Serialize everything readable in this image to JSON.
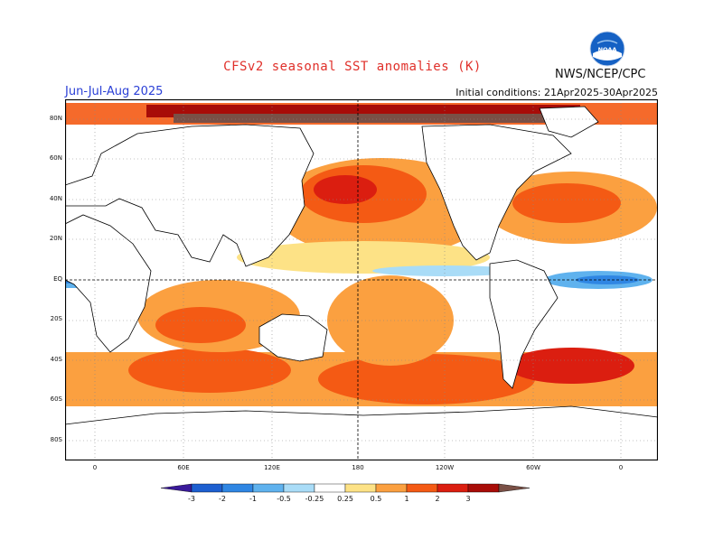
{
  "header": {
    "title": "CFSv2 seasonal SST anomalies (K)",
    "org": "NWS/NCEP/CPC",
    "season": "Jun-Jul-Aug 2025",
    "init": "Initial conditions: 21Apr2025-30Apr2025",
    "logo_text": "NOAA"
  },
  "map": {
    "lat_ticks": [
      "80N",
      "60N",
      "40N",
      "20N",
      "EQ",
      "20S",
      "40S",
      "60S",
      "80S"
    ],
    "lon_ticks": [
      "0",
      "60E",
      "120E",
      "180",
      "120W",
      "60W",
      "0"
    ]
  },
  "colorbar": {
    "labels": [
      "-3",
      "-2",
      "-1",
      "-0.5",
      "-0.25",
      "0.25",
      "0.5",
      "1",
      "2",
      "3"
    ],
    "colors": [
      "#3a1a9a",
      "#1d5fd0",
      "#2f86e3",
      "#5fb2ee",
      "#a9dcf7",
      "#ffffff",
      "#fde286",
      "#fba040",
      "#f45a14",
      "#db1e10",
      "#a80c08",
      "#7a5046"
    ]
  }
}
